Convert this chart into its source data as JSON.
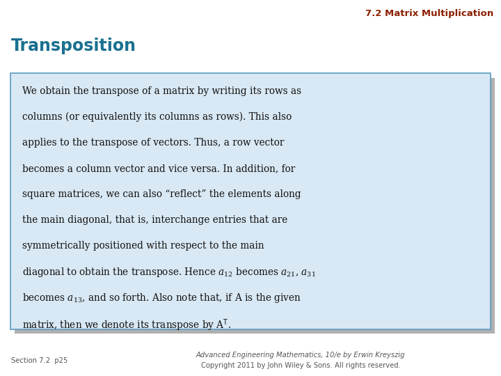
{
  "title": "7.2 Matrix Multiplication",
  "title_color": "#8B2000",
  "section_heading": "Transposition",
  "section_heading_color": "#1A7090",
  "bg_color": "#FFFFFF",
  "box_bg_color": "#D8E8F4",
  "box_border_color": "#5A9BBF",
  "shadow_color": "#B0B0B0",
  "body_text": "We obtain the transpose of a matrix by writing its rows as\ncolumns (or equivalently its columns as rows). This also\napplies to the transpose of vectors. Thus, a row vector\nbecomes a column vector and vice versa. In addition, for\nsquare matrices, we can also “reflect” the elements along\nthe main diagonal, that is, interchange entries that are\nsymmetrically positioned with respect to the main\ndiagonal to obtain the transpose. Hence $a_{12}$ becomes $a_{21}$, $a_{31}$\nbecomes $a_{13}$, and so forth. Also note that, if A is the given\nmatrix, then we denote its transpose by A$^{\\mathsf{T}}$.",
  "footer_left": "Section 7.2  p25",
  "footer_right_line1": "Advanced Engineering Mathematics, 10/e by Erwin Kreyszig",
  "footer_right_line2": "Copyright 2011 by John Wiley & Sons. All rights reserved.",
  "footer_color": "#555555",
  "body_lines": [
    "We obtain the transpose of a matrix by writing its rows as",
    "columns (or equivalently its columns as rows). This also",
    "applies to the transpose of vectors. Thus, a row vector",
    "becomes a column vector and vice versa. In addition, for",
    "square matrices, we can also “reflect” the elements along",
    "the main diagonal, that is, interchange entries that are",
    "symmetrically positioned with respect to the main",
    "diagonal to obtain the transpose. Hence $a_{12}$ becomes $a_{21}$, $a_{31}$",
    "becomes $a_{13}$, and so forth. Also note that, if A is the given",
    "matrix, then we denote its transpose by A$^{\\mathsf{T}}$."
  ]
}
